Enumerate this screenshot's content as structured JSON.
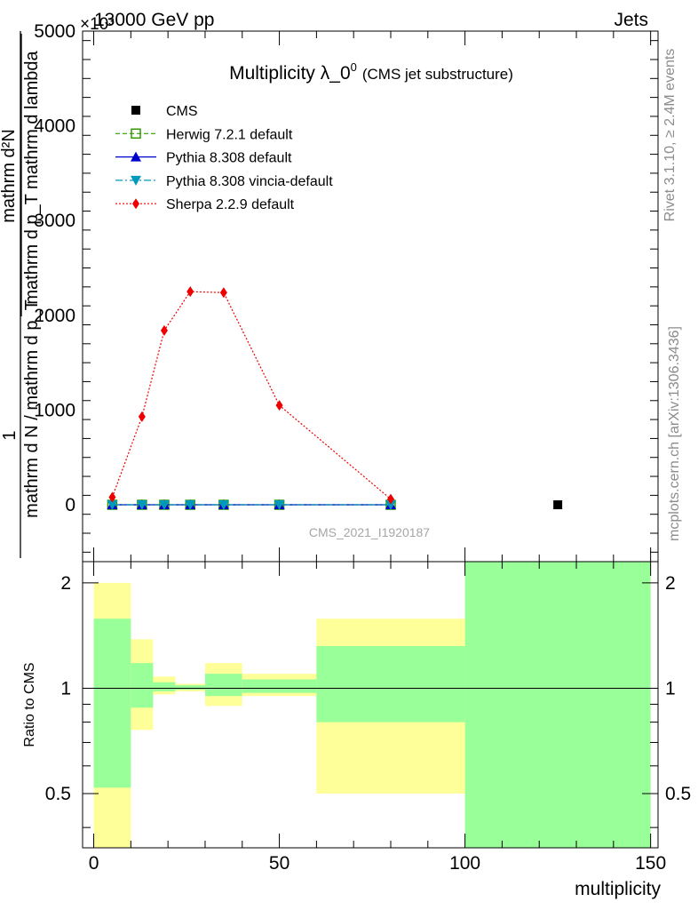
{
  "header": {
    "left": "13000 GeV pp",
    "right": "Jets",
    "exponent": "×10³"
  },
  "side_text": {
    "rivet": "Rivet 3.1.10, ≥ 2.4M events",
    "mcplots": "mcplots.cern.ch [arXiv:1306.3436]"
  },
  "watermark": "CMS_2021_I1920187",
  "chart_data": [
    {
      "type": "line",
      "title_main": "Multiplicity λ_0",
      "title_sup": "0",
      "title_sub": "(CMS jet substructure)",
      "xlabel": "multiplicity",
      "ylabel_numerator": "1",
      "ylabel_denominator": "mathrm d N / mathrm d p_T",
      "ylabel_inner_num": "mathrm d²N",
      "ylabel_inner_den": "mathrm d p_T mathrm d lambda",
      "xlim": [
        -3,
        152
      ],
      "ylim": [
        -600,
        5000
      ],
      "x_ticks": [
        0,
        50,
        100,
        150
      ],
      "y_ticks": [
        0,
        1000,
        2000,
        3000,
        4000,
        5000
      ],
      "y_tick_labels": [
        "0",
        "1000",
        "2000",
        "3000",
        "4000",
        "5000"
      ],
      "series": [
        {
          "name": "CMS",
          "color": "#000000",
          "marker": "square",
          "line": "none",
          "points": [
            [
              125,
              0
            ]
          ]
        },
        {
          "name": "Herwig 7.2.1 default",
          "color": "#339900",
          "marker": "open-square",
          "line": "dashed",
          "points": [
            [
              5,
              0
            ],
            [
              13,
              0
            ],
            [
              19,
              0
            ],
            [
              26,
              0
            ],
            [
              35,
              0
            ],
            [
              50,
              0
            ],
            [
              80,
              0
            ]
          ]
        },
        {
          "name": "Pythia 8.308 default",
          "color": "#0000cc",
          "marker": "triangle-up",
          "line": "solid",
          "points": [
            [
              5,
              0
            ],
            [
              13,
              0
            ],
            [
              19,
              0
            ],
            [
              26,
              0
            ],
            [
              35,
              0
            ],
            [
              50,
              0
            ],
            [
              80,
              0
            ]
          ]
        },
        {
          "name": "Pythia 8.308 vincia-default",
          "color": "#0099bb",
          "marker": "triangle-down",
          "line": "dashdot",
          "points": [
            [
              5,
              0
            ],
            [
              13,
              0
            ],
            [
              19,
              0
            ],
            [
              26,
              0
            ],
            [
              35,
              0
            ],
            [
              50,
              0
            ],
            [
              80,
              0
            ]
          ]
        },
        {
          "name": "Sherpa 2.2.9 default",
          "color": "#ee0000",
          "marker": "diamond",
          "line": "dotted",
          "points": [
            [
              5,
              80
            ],
            [
              13,
              930
            ],
            [
              19,
              1840
            ],
            [
              26,
              2250
            ],
            [
              35,
              2240
            ],
            [
              50,
              1050
            ],
            [
              80,
              60
            ]
          ]
        }
      ]
    },
    {
      "type": "area",
      "ylabel": "Ratio to CMS",
      "xlabel": "multiplicity",
      "xlim": [
        -3,
        152
      ],
      "ylim": [
        0.35,
        2.3
      ],
      "x_ticks": [
        0,
        50,
        100,
        150
      ],
      "y_ticks": [
        0.5,
        1,
        2
      ],
      "y_tick_labels": [
        "0.5",
        "1",
        "2"
      ],
      "reference_line": 1,
      "bands": [
        {
          "x": [
            0,
            10
          ],
          "yellow": [
            0.3,
            2.0
          ],
          "green": [
            0.52,
            1.58
          ]
        },
        {
          "x": [
            10,
            16
          ],
          "yellow": [
            0.76,
            1.38
          ],
          "green": [
            0.88,
            1.18
          ]
        },
        {
          "x": [
            16,
            22
          ],
          "yellow": [
            0.96,
            1.08
          ],
          "green": [
            0.98,
            1.04
          ]
        },
        {
          "x": [
            22,
            30
          ],
          "yellow": [
            0.98,
            1.03
          ],
          "green": [
            0.99,
            1.02
          ]
        },
        {
          "x": [
            30,
            40
          ],
          "yellow": [
            0.89,
            1.18
          ],
          "green": [
            0.95,
            1.1
          ]
        },
        {
          "x": [
            40,
            60
          ],
          "yellow": [
            0.95,
            1.1
          ],
          "green": [
            0.97,
            1.06
          ]
        },
        {
          "x": [
            60,
            100
          ],
          "yellow": [
            0.5,
            1.58
          ],
          "green": [
            0.8,
            1.32
          ]
        },
        {
          "x": [
            100,
            150
          ],
          "yellow": [
            0.3,
            2.3
          ],
          "green": [
            0.3,
            2.3
          ]
        }
      ]
    }
  ]
}
